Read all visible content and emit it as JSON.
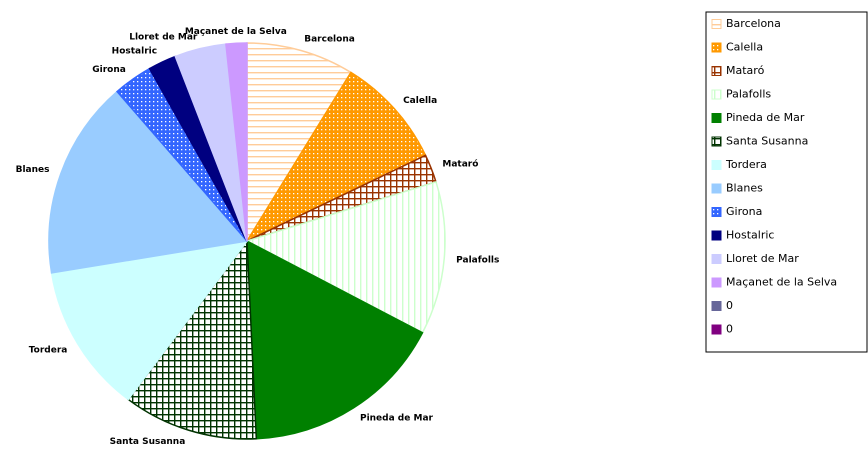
{
  "chart_data": {
    "type": "pie",
    "categories": [
      "Barcelona",
      "Calella",
      "Mataró",
      "Palafolls",
      "Pineda de Mar",
      "Santa Susanna",
      "Tordera",
      "Blanes",
      "Girona",
      "Hostalric",
      "Lloret de Mar",
      "Maçanet de la Selva",
      "0",
      "0"
    ],
    "values": [
      8.8,
      9.1,
      2.3,
      12.5,
      16.6,
      11.0,
      12.2,
      16.2,
      3.2,
      2.3,
      4.2,
      1.7,
      0,
      0
    ],
    "colors": [
      "#ffcc99",
      "#ff9900",
      "#993300",
      "#ccffcc",
      "#008000",
      "#003300",
      "#ccffff",
      "#99ccff",
      "#3366ff",
      "#000080",
      "#ccccff",
      "#cc99ff",
      "#666699",
      "#800080"
    ],
    "legend": "right"
  }
}
